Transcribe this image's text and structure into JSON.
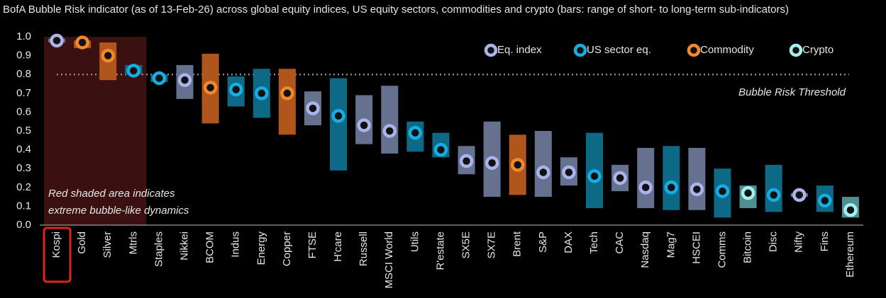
{
  "chart_data": {
    "type": "range_dot",
    "title": "BofA Bubble Risk indicator (as of 13-Feb-26) across global equity indices, US equity sectors, commodities and crypto (bars: range of short- to long-term sub-indicators)",
    "categories": [
      "Kospi",
      "Gold",
      "Silver",
      "Mtrls",
      "Staples",
      "Nikkei",
      "BCOM",
      "Indus",
      "Energy",
      "Copper",
      "FTSE",
      "H'care",
      "Russell",
      "MSCI World",
      "Utils",
      "R'estate",
      "SX5E",
      "SX7E",
      "Brent",
      "S&P",
      "DAX",
      "Tech",
      "CAC",
      "Nasdaq",
      "Mag7",
      "HSCEI",
      "Comms",
      "Bitcoin",
      "Disc",
      "Nifty",
      "Fins",
      "Ethereum"
    ],
    "series": [
      {
        "name": "Eq. index",
        "color": "#aab4ea",
        "bar_color": "#66718f",
        "low": [
          0.97,
          null,
          null,
          null,
          null,
          0.67,
          null,
          null,
          null,
          null,
          0.53,
          null,
          0.43,
          0.38,
          null,
          null,
          0.27,
          0.15,
          null,
          0.15,
          0.21,
          null,
          0.18,
          0.09,
          null,
          0.08,
          null,
          null,
          null,
          0.15,
          null,
          null
        ],
        "high": [
          0.99,
          null,
          null,
          null,
          null,
          0.85,
          null,
          null,
          null,
          null,
          0.71,
          null,
          0.69,
          0.74,
          null,
          null,
          0.42,
          0.55,
          null,
          0.5,
          0.36,
          null,
          0.32,
          0.41,
          null,
          0.41,
          null,
          null,
          null,
          0.17,
          null,
          null
        ],
        "values": [
          0.98,
          null,
          null,
          null,
          null,
          0.77,
          null,
          null,
          null,
          null,
          0.62,
          null,
          0.53,
          0.5,
          null,
          null,
          0.34,
          0.33,
          null,
          0.28,
          0.28,
          null,
          0.25,
          0.2,
          null,
          0.19,
          null,
          null,
          null,
          0.16,
          null,
          null
        ]
      },
      {
        "name": "US sector eq.",
        "color": "#19ace0",
        "bar_color": "#0d6a87",
        "low": [
          null,
          null,
          null,
          0.8,
          0.76,
          null,
          null,
          0.63,
          0.57,
          null,
          null,
          0.29,
          null,
          null,
          0.39,
          0.36,
          null,
          null,
          null,
          null,
          null,
          0.09,
          null,
          null,
          0.08,
          null,
          0.04,
          null,
          0.07,
          null,
          0.07,
          null
        ],
        "high": [
          null,
          null,
          null,
          0.85,
          0.8,
          null,
          null,
          0.79,
          0.83,
          null,
          null,
          0.78,
          null,
          null,
          0.55,
          0.49,
          null,
          null,
          null,
          null,
          null,
          0.49,
          null,
          null,
          0.42,
          null,
          0.3,
          null,
          0.32,
          null,
          0.21,
          null
        ],
        "values": [
          null,
          null,
          null,
          0.82,
          0.78,
          null,
          null,
          0.72,
          0.7,
          null,
          null,
          0.58,
          null,
          null,
          0.49,
          0.4,
          null,
          null,
          null,
          null,
          null,
          0.26,
          null,
          null,
          0.2,
          null,
          0.18,
          null,
          0.16,
          null,
          0.13,
          null
        ]
      },
      {
        "name": "Commodity",
        "color": "#f0892e",
        "bar_color": "#b0561c",
        "low": [
          null,
          0.94,
          0.77,
          null,
          null,
          null,
          0.54,
          null,
          null,
          0.48,
          null,
          null,
          null,
          null,
          null,
          null,
          null,
          null,
          0.16,
          null,
          null,
          null,
          null,
          null,
          null,
          null,
          null,
          null,
          null,
          null,
          null,
          null
        ],
        "high": [
          null,
          0.98,
          0.97,
          null,
          null,
          null,
          0.91,
          null,
          null,
          0.83,
          null,
          null,
          null,
          null,
          null,
          null,
          null,
          null,
          0.48,
          null,
          null,
          null,
          null,
          null,
          null,
          null,
          null,
          null,
          null,
          null,
          null,
          null
        ],
        "values": [
          null,
          0.97,
          0.9,
          null,
          null,
          null,
          0.73,
          null,
          null,
          0.7,
          null,
          null,
          null,
          null,
          null,
          null,
          null,
          null,
          0.32,
          null,
          null,
          null,
          null,
          null,
          null,
          null,
          null,
          null,
          null,
          null,
          null,
          null
        ]
      },
      {
        "name": "Crypto",
        "color": "#a4f0ee",
        "bar_color": "#4f8f92",
        "low": [
          null,
          null,
          null,
          null,
          null,
          null,
          null,
          null,
          null,
          null,
          null,
          null,
          null,
          null,
          null,
          null,
          null,
          null,
          null,
          null,
          null,
          null,
          null,
          null,
          null,
          null,
          null,
          0.09,
          null,
          null,
          null,
          0.04
        ],
        "high": [
          null,
          null,
          null,
          null,
          null,
          null,
          null,
          null,
          null,
          null,
          null,
          null,
          null,
          null,
          null,
          null,
          null,
          null,
          null,
          null,
          null,
          null,
          null,
          null,
          null,
          null,
          null,
          0.21,
          null,
          null,
          null,
          0.15
        ],
        "values": [
          null,
          null,
          null,
          null,
          null,
          null,
          null,
          null,
          null,
          null,
          null,
          null,
          null,
          null,
          null,
          null,
          null,
          null,
          null,
          null,
          null,
          null,
          null,
          null,
          null,
          null,
          null,
          0.17,
          null,
          null,
          null,
          0.08
        ]
      }
    ],
    "ylim": [
      0,
      1
    ],
    "yticks": [
      {
        "value": 0,
        "label": "0.0"
      },
      0.1,
      0.2,
      0.3,
      0.4,
      0.5,
      0.6,
      0.7,
      0.8,
      0.9,
      {
        "value": 1,
        "label": "1.0"
      }
    ],
    "threshold": {
      "value": 0.8,
      "label": "Bubble Risk Threshold"
    },
    "shaded_span": [
      0,
      3
    ],
    "shaded_note": [
      "Red shaded area indicates",
      "extreme bubble-like dynamics"
    ],
    "highlight_category": 0,
    "legend": "top-right"
  }
}
